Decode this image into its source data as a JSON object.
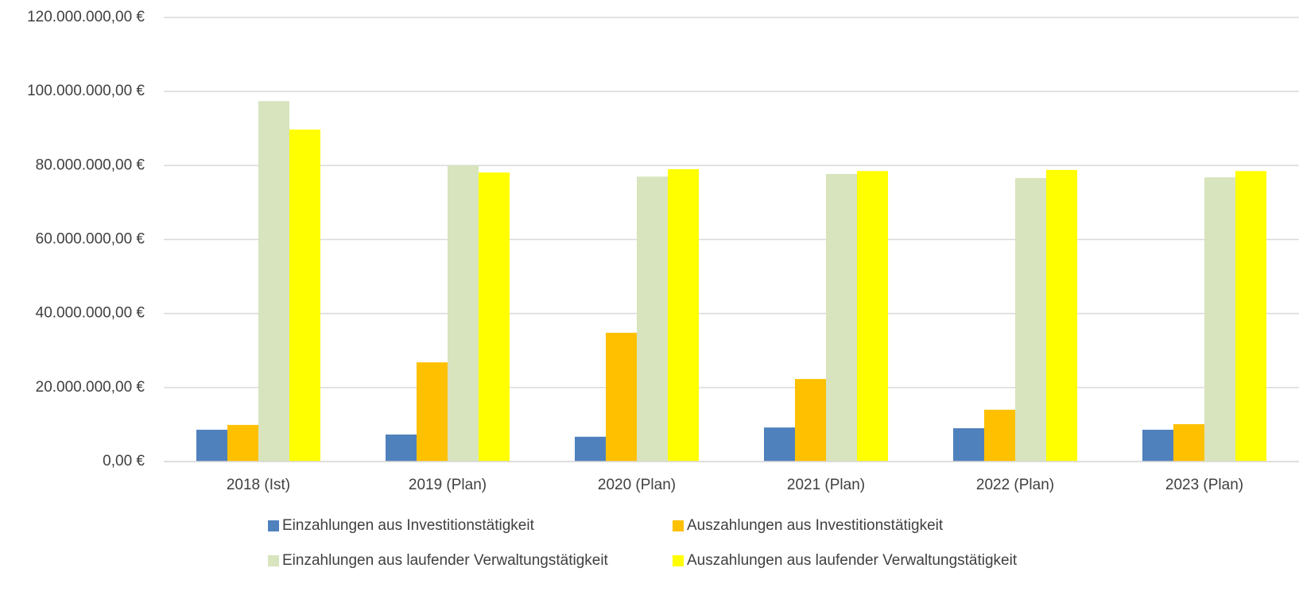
{
  "chart_data": {
    "type": "bar",
    "categories": [
      "2018 (Ist)",
      "2019 (Plan)",
      "2020 (Plan)",
      "2021 (Plan)",
      "2022 (Plan)",
      "2023 (Plan)"
    ],
    "series": [
      {
        "name": "Einzahlungen aus Investitionstätigkeit",
        "color": "#4f81bd",
        "values": [
          8600000,
          7300000,
          6700000,
          9200000,
          9000000,
          8600000
        ]
      },
      {
        "name": "Auszahlungen aus Investitionstätigkeit",
        "color": "#ffc000",
        "values": [
          9900000,
          26800000,
          34800000,
          22300000,
          14000000,
          10100000
        ]
      },
      {
        "name": "Einzahlungen aus laufender Verwaltungstätigkeit",
        "color": "#d7e4bd",
        "values": [
          97400000,
          80000000,
          77000000,
          77700000,
          76600000,
          76800000
        ]
      },
      {
        "name": "Auszahlungen aus laufender Verwaltungstätigkeit",
        "color": "#ffff00",
        "values": [
          89700000,
          78100000,
          79000000,
          78500000,
          78800000,
          78500000
        ]
      }
    ],
    "ylim": [
      0,
      120000000
    ],
    "yticks": [
      {
        "value": 0,
        "label": "0,00 €"
      },
      {
        "value": 20000000,
        "label": "20.000.000,00 €"
      },
      {
        "value": 40000000,
        "label": "40.000.000,00 €"
      },
      {
        "value": 60000000,
        "label": "60.000.000,00 €"
      },
      {
        "value": 80000000,
        "label": "80.000.000,00 €"
      },
      {
        "value": 100000000,
        "label": "100.000.000,00 €"
      },
      {
        "value": 120000000,
        "label": "120.000.000,00 €"
      }
    ],
    "grid": true,
    "legend": "bottom"
  }
}
